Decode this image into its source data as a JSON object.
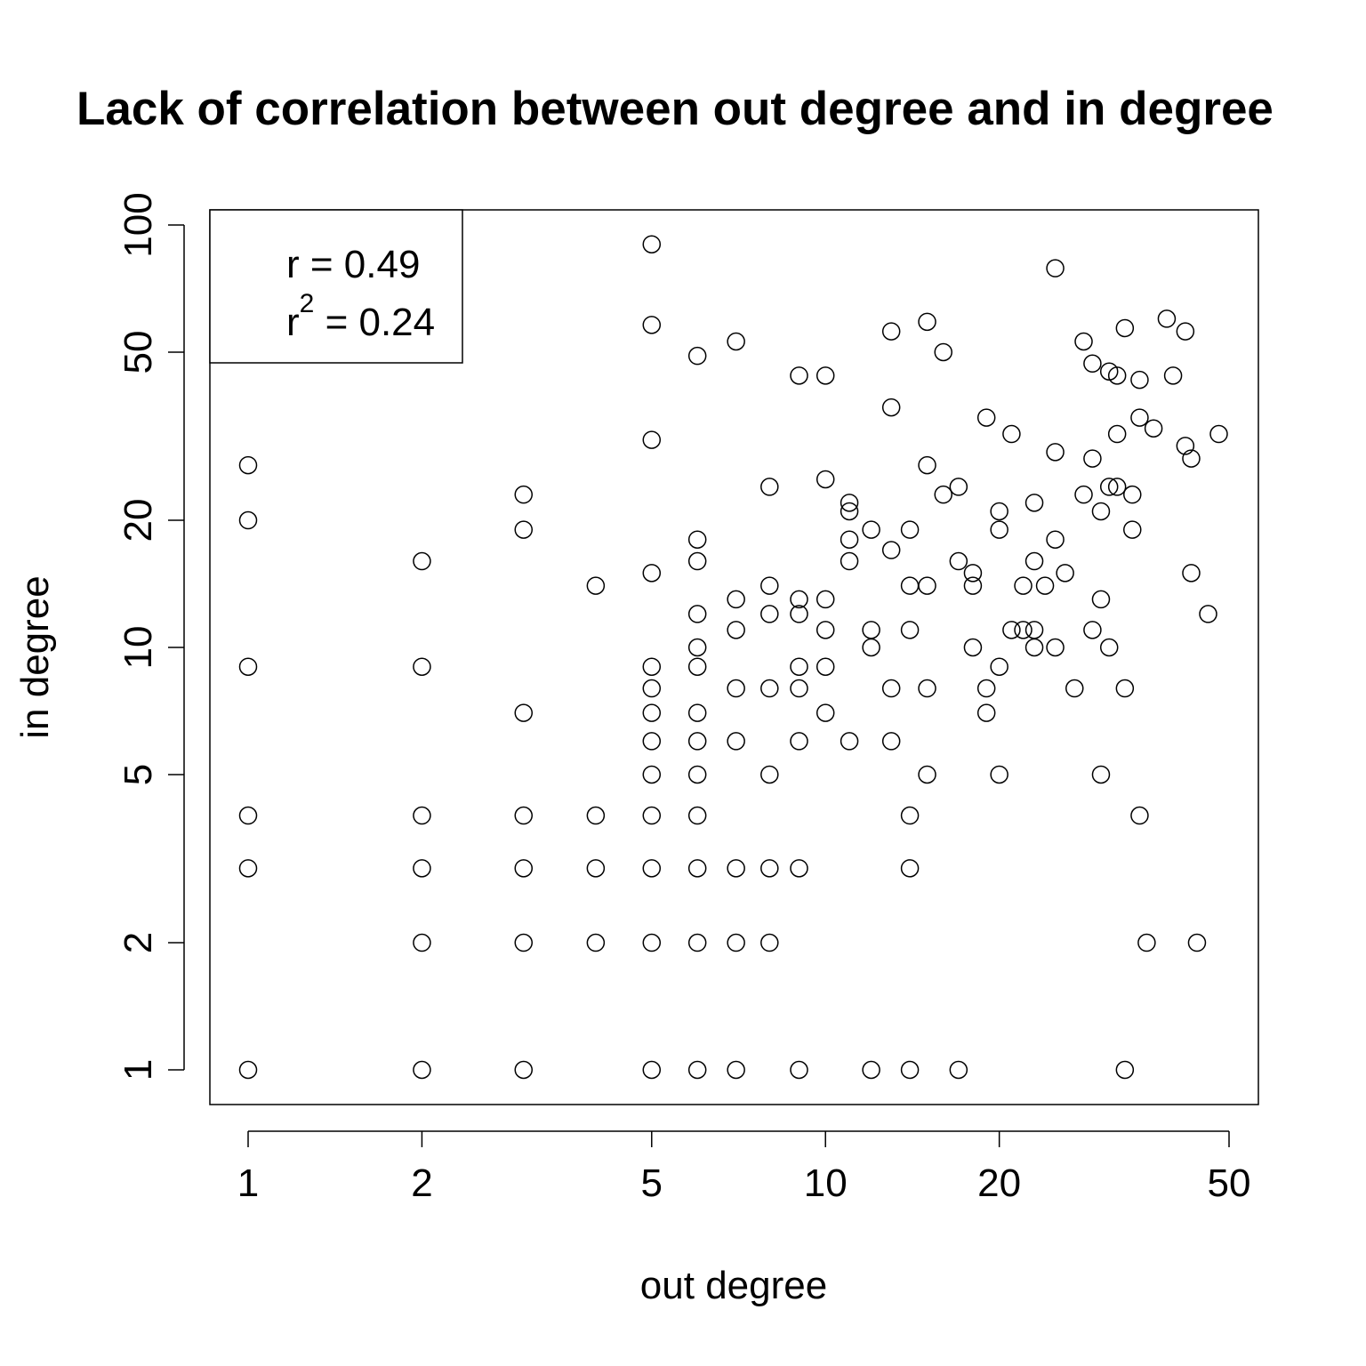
{
  "chart_data": {
    "type": "scatter",
    "title": "Lack of correlation between out degree and in degree",
    "xlabel": "out degree",
    "ylabel": "in degree",
    "x_scale": "log",
    "y_scale": "log",
    "x_ticks": [
      1,
      2,
      5,
      10,
      20,
      50
    ],
    "y_ticks": [
      1,
      2,
      5,
      10,
      20,
      50,
      100
    ],
    "x_tick_labels": [
      "1",
      "2",
      "5",
      "10",
      "20",
      "50"
    ],
    "y_tick_labels": [
      "1",
      "2",
      "5",
      "10",
      "20",
      "50",
      "100"
    ],
    "xlim": [
      0.88,
      55
    ],
    "ylim": [
      0.88,
      107
    ],
    "grid": false,
    "legend": {
      "placement": "top-left",
      "r_text": "r = 0.49",
      "r2_base": "r",
      "r2_sup": "2",
      "r2_value": " = 0.24"
    },
    "points": [
      [
        1,
        27
      ],
      [
        1,
        20
      ],
      [
        1,
        9
      ],
      [
        1,
        4
      ],
      [
        1,
        3
      ],
      [
        1,
        1
      ],
      [
        2,
        16
      ],
      [
        2,
        9
      ],
      [
        2,
        4
      ],
      [
        2,
        3
      ],
      [
        2,
        2
      ],
      [
        2,
        1
      ],
      [
        3,
        23
      ],
      [
        3,
        19
      ],
      [
        3,
        7
      ],
      [
        3,
        4
      ],
      [
        3,
        3
      ],
      [
        3,
        2
      ],
      [
        3,
        1
      ],
      [
        4,
        14
      ],
      [
        4,
        4
      ],
      [
        4,
        3
      ],
      [
        4,
        2
      ],
      [
        5,
        90
      ],
      [
        5,
        58
      ],
      [
        5,
        31
      ],
      [
        5,
        15
      ],
      [
        5,
        9
      ],
      [
        5,
        8
      ],
      [
        5,
        7
      ],
      [
        5,
        6
      ],
      [
        5,
        5
      ],
      [
        5,
        4
      ],
      [
        5,
        3
      ],
      [
        5,
        2
      ],
      [
        5,
        1
      ],
      [
        6,
        49
      ],
      [
        6,
        18
      ],
      [
        6,
        16
      ],
      [
        6,
        12
      ],
      [
        6,
        10
      ],
      [
        6,
        9
      ],
      [
        6,
        7
      ],
      [
        6,
        6
      ],
      [
        6,
        5
      ],
      [
        6,
        4
      ],
      [
        6,
        3
      ],
      [
        6,
        2
      ],
      [
        6,
        1
      ],
      [
        7,
        53
      ],
      [
        7,
        13
      ],
      [
        7,
        11
      ],
      [
        7,
        8
      ],
      [
        7,
        6
      ],
      [
        7,
        3
      ],
      [
        7,
        2
      ],
      [
        7,
        1
      ],
      [
        8,
        24
      ],
      [
        8,
        14
      ],
      [
        8,
        12
      ],
      [
        8,
        8
      ],
      [
        8,
        5
      ],
      [
        8,
        3
      ],
      [
        8,
        2
      ],
      [
        9,
        44
      ],
      [
        9,
        13
      ],
      [
        9,
        12
      ],
      [
        9,
        9
      ],
      [
        9,
        8
      ],
      [
        9,
        6
      ],
      [
        9,
        3
      ],
      [
        9,
        1
      ],
      [
        10,
        44
      ],
      [
        10,
        25
      ],
      [
        10,
        13
      ],
      [
        10,
        11
      ],
      [
        10,
        9
      ],
      [
        10,
        7
      ],
      [
        11,
        22
      ],
      [
        11,
        21
      ],
      [
        11,
        18
      ],
      [
        11,
        16
      ],
      [
        11,
        6
      ],
      [
        12,
        19
      ],
      [
        12,
        11
      ],
      [
        12,
        10
      ],
      [
        12,
        1
      ],
      [
        13,
        56
      ],
      [
        13,
        37
      ],
      [
        13,
        17
      ],
      [
        13,
        8
      ],
      [
        13,
        6
      ],
      [
        14,
        19
      ],
      [
        14,
        14
      ],
      [
        14,
        11
      ],
      [
        14,
        4
      ],
      [
        14,
        3
      ],
      [
        14,
        1
      ],
      [
        15,
        59
      ],
      [
        15,
        27
      ],
      [
        15,
        14
      ],
      [
        15,
        8
      ],
      [
        15,
        5
      ],
      [
        16,
        50
      ],
      [
        16,
        23
      ],
      [
        17,
        24
      ],
      [
        17,
        16
      ],
      [
        17,
        1
      ],
      [
        18,
        15
      ],
      [
        18,
        14
      ],
      [
        18,
        10
      ],
      [
        19,
        35
      ],
      [
        19,
        8
      ],
      [
        19,
        7
      ],
      [
        20,
        21
      ],
      [
        20,
        19
      ],
      [
        20,
        9
      ],
      [
        20,
        5
      ],
      [
        21,
        32
      ],
      [
        21,
        11
      ],
      [
        22,
        14
      ],
      [
        22,
        11
      ],
      [
        23,
        22
      ],
      [
        23,
        16
      ],
      [
        23,
        11
      ],
      [
        23,
        10
      ],
      [
        24,
        14
      ],
      [
        25,
        79
      ],
      [
        25,
        29
      ],
      [
        25,
        18
      ],
      [
        25,
        10
      ],
      [
        26,
        15
      ],
      [
        27,
        8
      ],
      [
        28,
        53
      ],
      [
        28,
        23
      ],
      [
        29,
        47
      ],
      [
        29,
        28
      ],
      [
        29,
        11
      ],
      [
        30,
        21
      ],
      [
        30,
        13
      ],
      [
        30,
        5
      ],
      [
        31,
        45
      ],
      [
        31,
        24
      ],
      [
        31,
        10
      ],
      [
        32,
        44
      ],
      [
        32,
        32
      ],
      [
        32,
        24
      ],
      [
        33,
        57
      ],
      [
        33,
        8
      ],
      [
        33,
        1
      ],
      [
        34,
        23
      ],
      [
        34,
        19
      ],
      [
        35,
        43
      ],
      [
        35,
        35
      ],
      [
        35,
        4
      ],
      [
        36,
        2
      ],
      [
        37,
        33
      ],
      [
        39,
        60
      ],
      [
        40,
        44
      ],
      [
        42,
        56
      ],
      [
        42,
        30
      ],
      [
        43,
        28
      ],
      [
        43,
        15
      ],
      [
        44,
        2
      ],
      [
        46,
        12
      ],
      [
        48,
        32
      ]
    ]
  }
}
